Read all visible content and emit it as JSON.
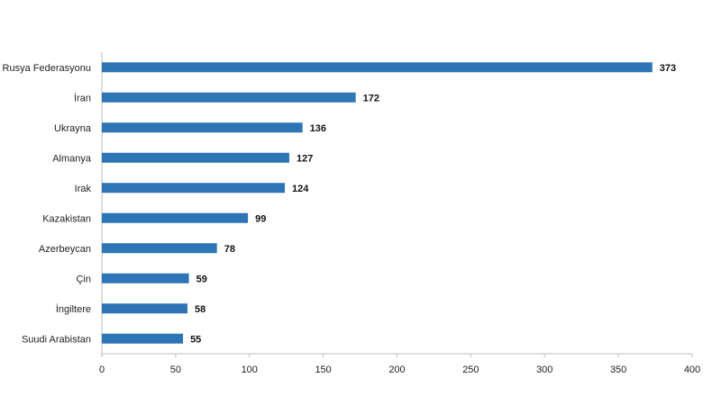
{
  "chart_data": {
    "type": "bar",
    "orientation": "horizontal",
    "title": "",
    "xlabel": "",
    "ylabel": "",
    "categories": [
      "Rusya Federasyonu",
      "İran",
      "Ukrayna",
      "Almanya",
      "Irak",
      "Kazakistan",
      "Azerbeycan",
      "Çin",
      "İngiltere",
      "Suudi Arabistan"
    ],
    "values": [
      373,
      172,
      136,
      127,
      124,
      99,
      78,
      59,
      58,
      55
    ],
    "xlim": [
      0,
      400
    ],
    "xticks": [
      0,
      50,
      100,
      150,
      200,
      250,
      300,
      350,
      400
    ],
    "grid": false,
    "data_labels": true,
    "bar_color": "#2e75b6"
  }
}
